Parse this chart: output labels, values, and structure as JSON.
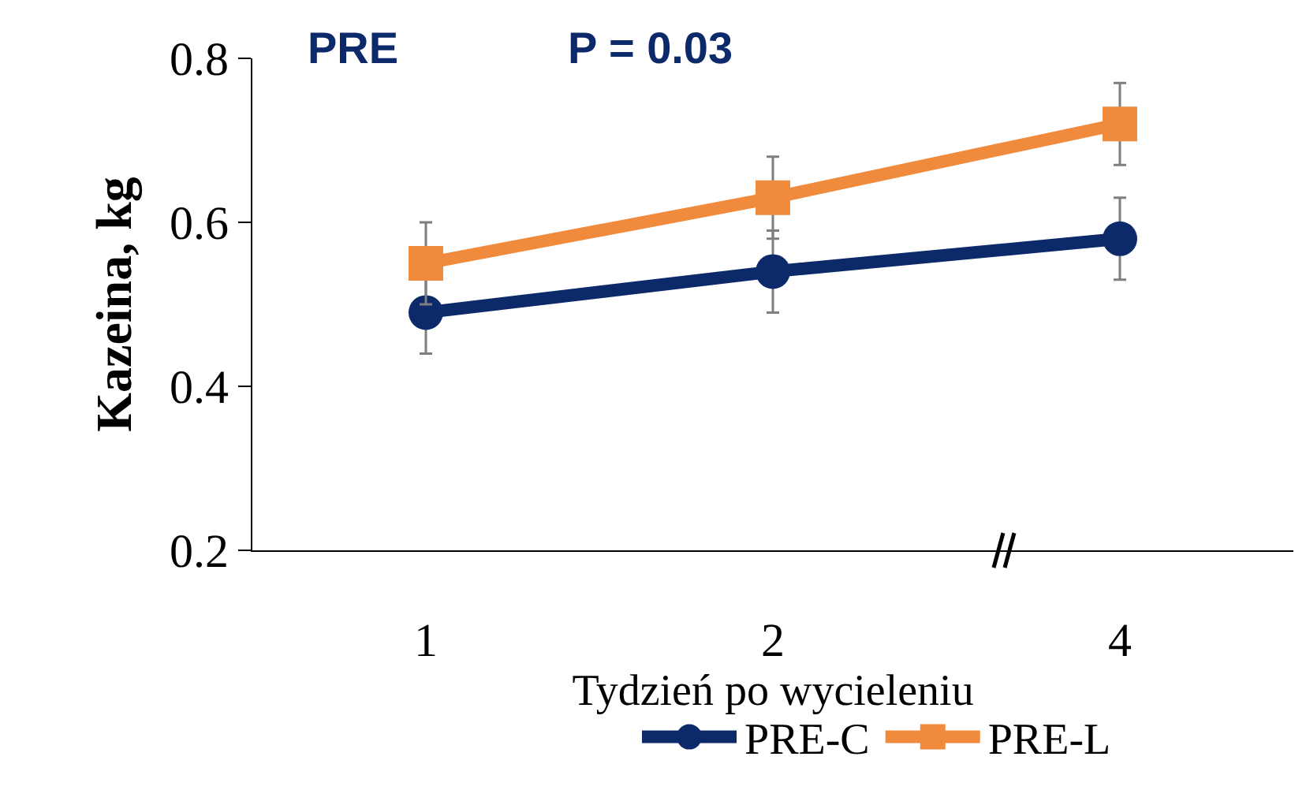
{
  "chart_data": {
    "type": "line",
    "categories": [
      "1",
      "2",
      "4"
    ],
    "ylabel": "Kazeina, kg",
    "xlabel": "Tydzień po wycieleniu",
    "annotations": [
      "PRE",
      "P = 0.03"
    ],
    "series": [
      {
        "name": "PRE-C",
        "color": "#0c2a6a",
        "marker": "circle",
        "values": [
          0.49,
          0.54,
          0.58
        ],
        "errors": [
          0.05,
          0.05,
          0.05
        ]
      },
      {
        "name": "PRE-L",
        "color": "#f08a3c",
        "marker": "square",
        "values": [
          0.55,
          0.63,
          0.72
        ],
        "errors": [
          0.05,
          0.05,
          0.05
        ]
      }
    ],
    "ylim": [
      0.2,
      0.8
    ],
    "yticks": [
      0.2,
      0.4,
      0.6,
      0.8
    ],
    "grid": false,
    "legend": "bottom",
    "line_style": "solid"
  }
}
